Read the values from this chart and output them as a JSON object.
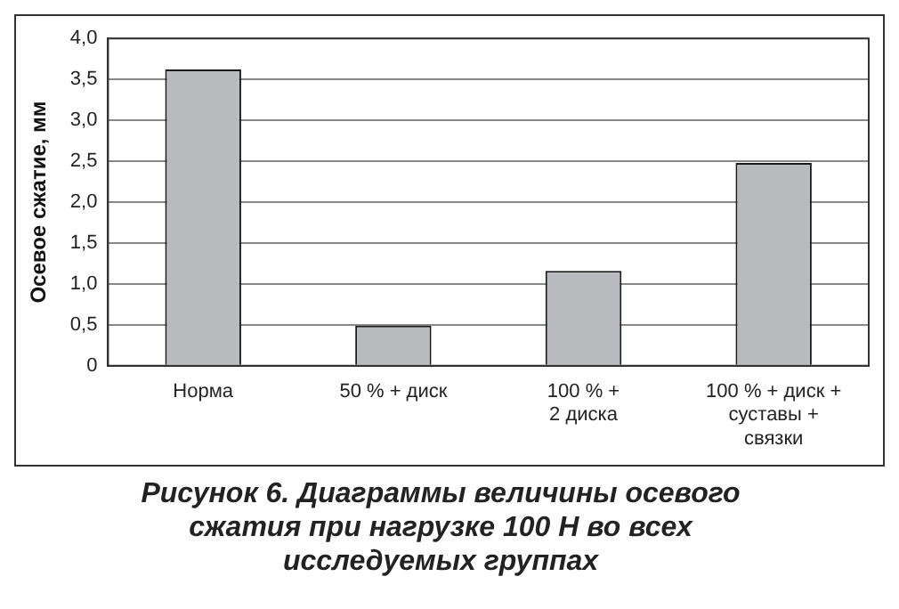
{
  "chart_data": {
    "type": "bar",
    "title": "Рисунок 6. Диаграммы величины осевого сжатия при нагрузке 100 Н во всех исследуемых группах",
    "ylabel": "Осевое сжатие, мм",
    "categories": [
      "Норма",
      "50 % + диск",
      "100 % + 2 диска",
      "100 % + диск + суставы + связки"
    ],
    "values": [
      3.62,
      0.49,
      1.16,
      2.48
    ],
    "color": "#b9babe",
    "ylim": [
      0,
      4
    ],
    "yticks": [
      {
        "value": 0,
        "label": "0"
      },
      {
        "value": 0.5,
        "label": "0,5"
      },
      {
        "value": 1,
        "label": "1,0"
      },
      {
        "value": 1.5,
        "label": "1,5"
      },
      {
        "value": 2,
        "label": "2,0"
      },
      {
        "value": 2.5,
        "label": "2,5"
      },
      {
        "value": 3,
        "label": "3,0"
      },
      {
        "value": 3.5,
        "label": "3,5"
      },
      {
        "value": 4,
        "label": "4,0"
      }
    ],
    "grid": "y"
  }
}
